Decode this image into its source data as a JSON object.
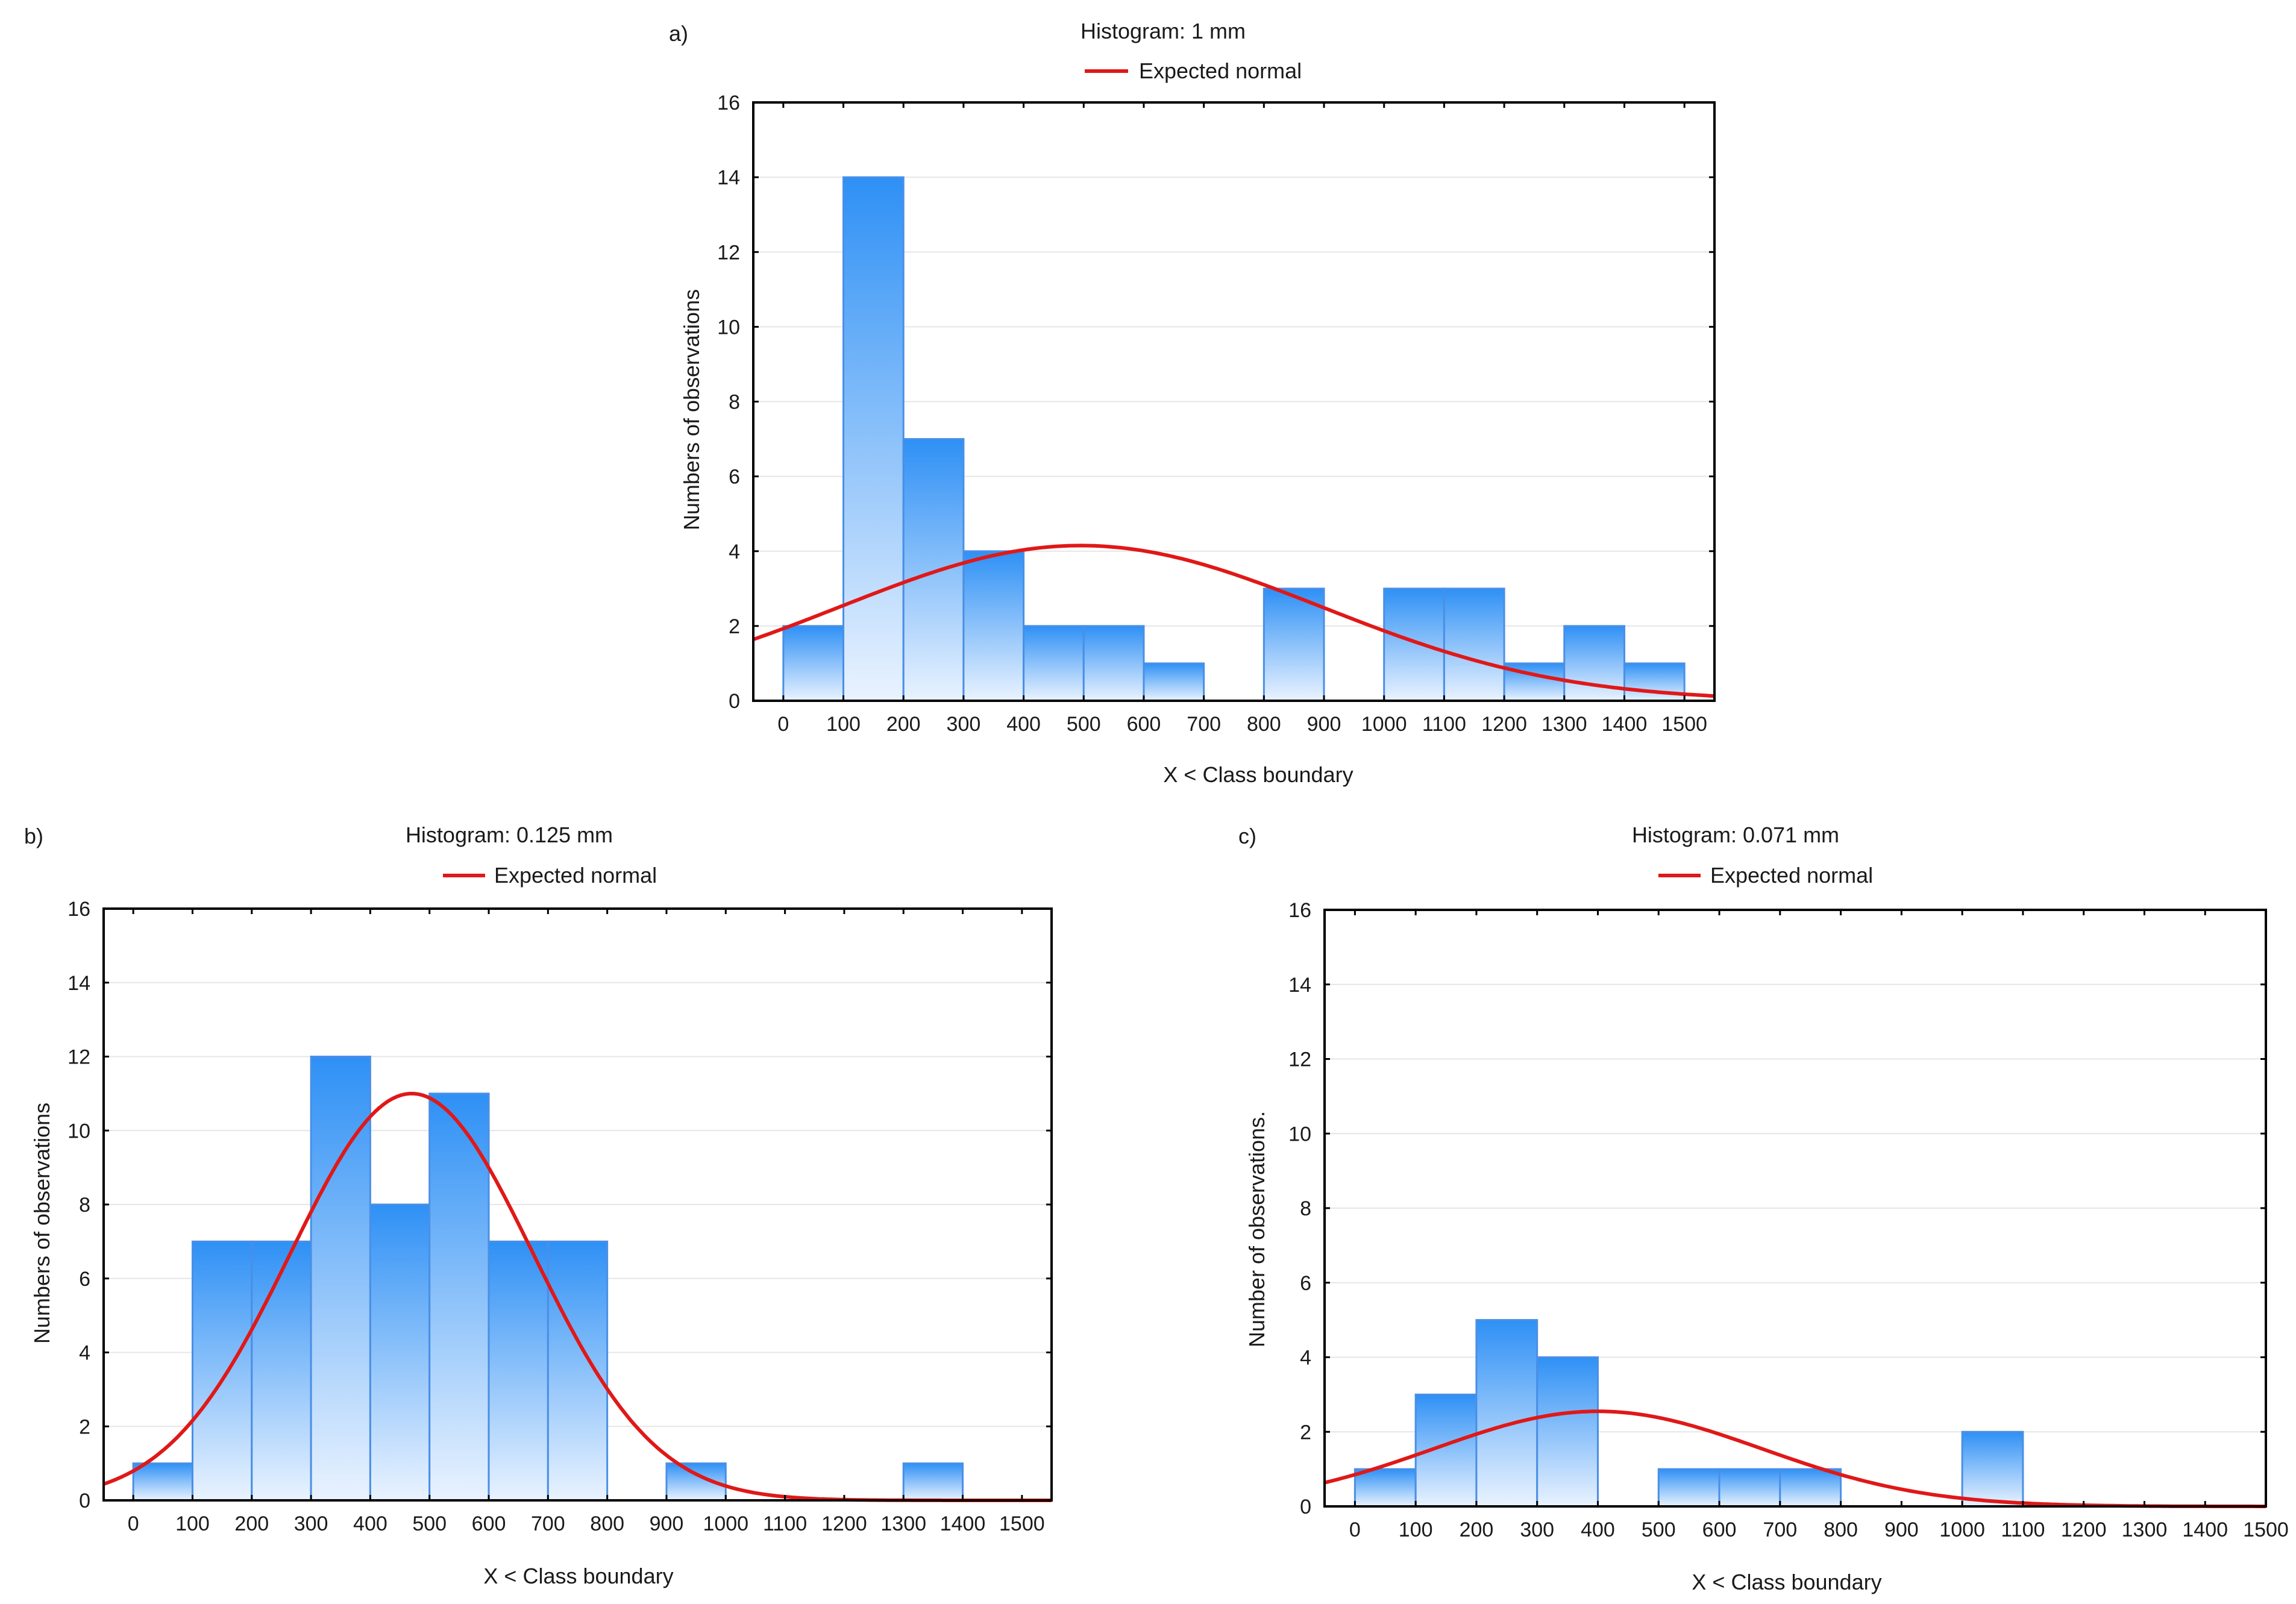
{
  "colors": {
    "bar_top": "#2e90f5",
    "bar_bottom": "#eaf3ff",
    "bar_stroke": "#4a8fe6",
    "curve": "#e01818",
    "axis": "#000000",
    "grid": "#e6e6e6"
  },
  "chart_data": [
    {
      "panel_label": "a)",
      "type": "bar",
      "title": "Histogram: 1 mm",
      "legend_label": "Expected normal",
      "xlabel": "X < Class boundary",
      "ylabel": "Numbers of observations",
      "xlim": [
        -50,
        1550
      ],
      "ylim": [
        0,
        16
      ],
      "x_ticks": [
        "0",
        "100",
        "200",
        "300",
        "400",
        "500",
        "600",
        "700",
        "800",
        "900",
        "1000",
        "1100",
        "1200",
        "1300",
        "1400",
        "1500"
      ],
      "y_ticks": [
        "0",
        "2",
        "4",
        "6",
        "8",
        "10",
        "12",
        "14",
        "16"
      ],
      "bins": [
        [
          0,
          100
        ],
        [
          100,
          200
        ],
        [
          200,
          300
        ],
        [
          300,
          400
        ],
        [
          400,
          500
        ],
        [
          500,
          600
        ],
        [
          600,
          700
        ],
        [
          700,
          800
        ],
        [
          800,
          900
        ],
        [
          900,
          1000
        ],
        [
          1000,
          1100
        ],
        [
          1100,
          1200
        ],
        [
          1200,
          1300
        ],
        [
          1300,
          1400
        ],
        [
          1400,
          1500
        ]
      ],
      "values": [
        2,
        14,
        7,
        4,
        2,
        2,
        1,
        0,
        3,
        0,
        3,
        3,
        1,
        2,
        1
      ],
      "normal": {
        "mean": 495,
        "peak": 4.15,
        "sd": 400
      }
    },
    {
      "panel_label": "b)",
      "type": "bar",
      "title": "Histogram: 0.125 mm",
      "legend_label": "Expected normal",
      "xlabel": "X < Class boundary",
      "ylabel": "Numbers of observations",
      "xlim": [
        -50,
        1550
      ],
      "ylim": [
        0,
        16
      ],
      "x_ticks": [
        "0",
        "100",
        "200",
        "300",
        "400",
        "500",
        "600",
        "700",
        "800",
        "900",
        "1000",
        "1100",
        "1200",
        "1300",
        "1400",
        "1500"
      ],
      "y_ticks": [
        "0",
        "2",
        "4",
        "6",
        "8",
        "10",
        "12",
        "14",
        "16"
      ],
      "bins": [
        [
          0,
          100
        ],
        [
          100,
          200
        ],
        [
          200,
          300
        ],
        [
          300,
          400
        ],
        [
          400,
          500
        ],
        [
          500,
          600
        ],
        [
          600,
          700
        ],
        [
          700,
          800
        ],
        [
          800,
          900
        ],
        [
          900,
          1000
        ],
        [
          1000,
          1100
        ],
        [
          1100,
          1200
        ],
        [
          1200,
          1300
        ],
        [
          1300,
          1400
        ],
        [
          1400,
          1500
        ]
      ],
      "values": [
        1,
        7,
        7,
        12,
        8,
        11,
        7,
        7,
        0,
        1,
        0,
        0,
        0,
        1,
        0
      ],
      "normal": {
        "mean": 470,
        "peak": 11.0,
        "sd": 205
      }
    },
    {
      "panel_label": "c)",
      "type": "bar",
      "title": "Histogram: 0.071 mm",
      "legend_label": "Expected normal",
      "xlabel": "X < Class boundary",
      "ylabel": "Number of observations.",
      "xlim": [
        -50,
        1500
      ],
      "ylim": [
        0,
        16
      ],
      "x_ticks": [
        "0",
        "100",
        "200",
        "300",
        "400",
        "500",
        "600",
        "700",
        "800",
        "900",
        "1000",
        "1100",
        "1200",
        "1300",
        "1400",
        "1500"
      ],
      "y_ticks": [
        "0",
        "2",
        "4",
        "6",
        "8",
        "10",
        "12",
        "14",
        "16"
      ],
      "bins": [
        [
          0,
          100
        ],
        [
          100,
          200
        ],
        [
          200,
          300
        ],
        [
          300,
          400
        ],
        [
          400,
          500
        ],
        [
          500,
          600
        ],
        [
          600,
          700
        ],
        [
          700,
          800
        ],
        [
          800,
          900
        ],
        [
          900,
          1000
        ],
        [
          1000,
          1100
        ],
        [
          1100,
          1200
        ],
        [
          1200,
          1300
        ],
        [
          1300,
          1400
        ],
        [
          1400,
          1500
        ]
      ],
      "values": [
        1,
        3,
        5,
        4,
        0,
        1,
        1,
        1,
        0,
        0,
        2,
        0,
        0,
        0,
        0
      ],
      "normal": {
        "mean": 400,
        "peak": 2.55,
        "sd": 270
      }
    }
  ]
}
